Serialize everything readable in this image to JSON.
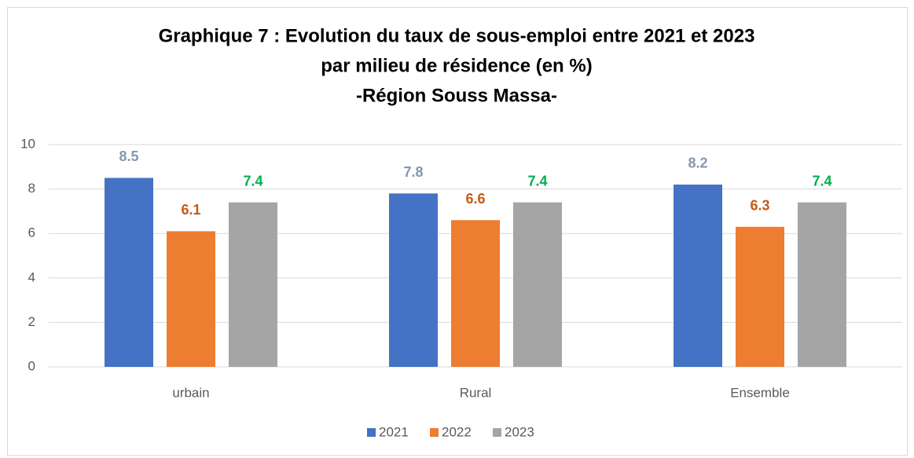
{
  "chart_data": {
    "type": "bar",
    "title": [
      "Graphique 7 : Evolution du taux de sous-emploi entre 2021 et 2023",
      "par milieu de résidence (en %)",
      "-Région Souss Massa-"
    ],
    "categories": [
      "urbain",
      "Rural",
      "Ensemble"
    ],
    "series": [
      {
        "name": "2021",
        "color": "#4472c4",
        "label_color": "#8497b0",
        "values": [
          8.5,
          7.8,
          8.2
        ]
      },
      {
        "name": "2022",
        "color": "#ed7d31",
        "label_color": "#c55a11",
        "values": [
          6.1,
          6.6,
          6.3
        ]
      },
      {
        "name": "2023",
        "color": "#a5a5a5",
        "label_color": "#00b050",
        "values": [
          7.4,
          7.4,
          7.4
        ]
      }
    ],
    "ylim": [
      0,
      10
    ],
    "yticks": [
      0,
      2,
      4,
      6,
      8,
      10
    ],
    "grid": true,
    "legend": "bottom"
  }
}
